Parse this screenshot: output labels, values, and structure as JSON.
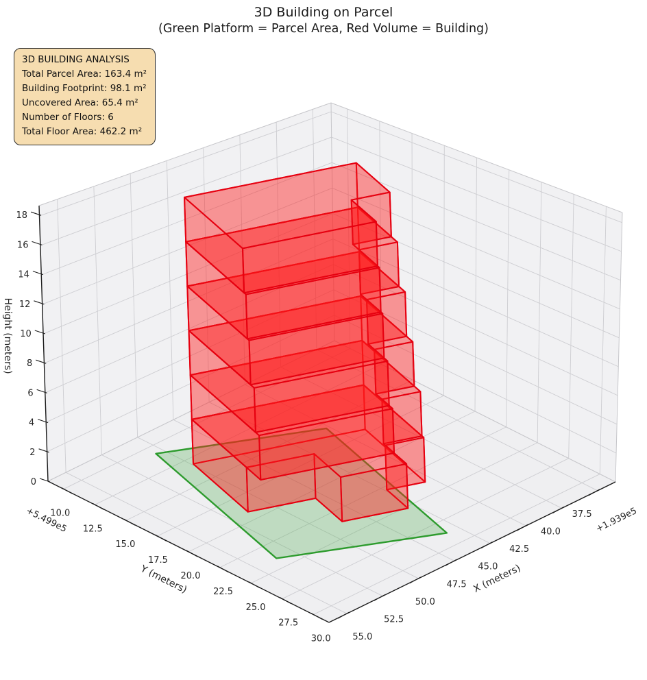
{
  "title": {
    "line1": "3D Building on Parcel",
    "line2": "(Green Platform = Parcel Area, Red Volume = Building)"
  },
  "info_box": {
    "title": "3D BUILDING ANALYSIS",
    "lines": [
      "Total Parcel Area: 163.4 m²",
      "Building Footprint: 98.1 m²",
      "Uncovered Area: 65.4 m²",
      "Number of Floors: 6",
      "Total Floor Area: 462.2 m²"
    ]
  },
  "axes": {
    "x": {
      "label": "X (meters)",
      "offset_text": "+1.939e5",
      "tick_labels": [
        "37.5",
        "40.0",
        "42.5",
        "45.0",
        "47.5",
        "50.0",
        "52.5",
        "55.0"
      ],
      "tick_values": [
        37.5,
        40,
        42.5,
        45,
        47.5,
        50,
        52.5,
        55
      ],
      "lim": [
        36.25,
        56.25
      ]
    },
    "y": {
      "label": "Y (meters)",
      "offset_text": "+5.499e5",
      "tick_labels": [
        "10.0",
        "12.5",
        "15.0",
        "17.5",
        "20.0",
        "22.5",
        "25.0",
        "27.5",
        "30.0"
      ],
      "tick_values": [
        10,
        12.5,
        15,
        17.5,
        20,
        22.5,
        25,
        27.5,
        30
      ],
      "lim": [
        8.75,
        31.25
      ]
    },
    "z": {
      "label": "Height (meters)",
      "tick_labels": [
        "0",
        "2",
        "4",
        "6",
        "8",
        "10",
        "12",
        "14",
        "16",
        "18"
      ],
      "tick_values": [
        0,
        2,
        4,
        6,
        8,
        10,
        12,
        14,
        16,
        18
      ],
      "lim": [
        0,
        18.7
      ]
    }
  },
  "colors": {
    "pane": "#f1f1f3",
    "floor_pane": "#efeff1",
    "grid": "#cdcdd1",
    "pane_edge": "#c6c6ca",
    "spine": "#1c1c1c",
    "tick_text": "#262626",
    "building_edge": "#e60010",
    "building_fill": "#ff1a1a",
    "parcel_edge": "#2d9b2d",
    "parcel_fill": "#44aa44",
    "info_bg": "#f6ddb0"
  },
  "chart_data": {
    "type": "3d_building_plot",
    "title": "3D Building on Parcel",
    "subtitle": "(Green Platform = Parcel Area, Red Volume = Building)",
    "coordinate_offsets": {
      "x": "+1.939e5",
      "y": "+5.499e5"
    },
    "stats": {
      "total_parcel_area_m2": 163.4,
      "building_footprint_m2": 98.1,
      "uncovered_area_m2": 65.4,
      "number_of_floors": 6,
      "total_floor_area_m2": 462.2
    },
    "floor_height_m": 3,
    "parcel_polygon_xy": [
      [
        50.5,
        10.8
      ],
      [
        53.6,
        24.0
      ],
      [
        45.8,
        28.7
      ],
      [
        42.7,
        15.5
      ]
    ],
    "building_frame": {
      "origin": [
        49.9,
        13.1
      ],
      "e_length": [
        0.232,
        0.973
      ],
      "e_width": [
        -0.904,
        0.427
      ]
    },
    "building_floors": [
      {
        "z0": 0,
        "z1": 3,
        "poly": [
          [
            0,
            0
          ],
          [
            6.2,
            0
          ],
          [
            6.2,
            3.7
          ],
          [
            9.2,
            3.7
          ],
          [
            9.2,
            7.3
          ],
          [
            6.8,
            7.3
          ],
          [
            6.8,
            9.4
          ],
          [
            0,
            9.4
          ]
        ]
      },
      {
        "z0": 3,
        "z1": 6,
        "poly": [
          [
            0,
            0
          ],
          [
            7.8,
            0
          ],
          [
            7.8,
            7.3
          ],
          [
            6.6,
            7.3
          ],
          [
            6.6,
            9.4
          ],
          [
            0,
            9.4
          ]
        ]
      },
      {
        "z0": 6,
        "z1": 9,
        "poly": [
          [
            0,
            0
          ],
          [
            7.4,
            0
          ],
          [
            7.4,
            7.3
          ],
          [
            5.9,
            7.3
          ],
          [
            5.9,
            9.4
          ],
          [
            0,
            9.4
          ]
        ]
      },
      {
        "z0": 9,
        "z1": 12,
        "poly": [
          [
            0,
            0
          ],
          [
            7.0,
            0
          ],
          [
            7.0,
            7.3
          ],
          [
            5.2,
            7.3
          ],
          [
            5.2,
            9.4
          ],
          [
            0,
            9.4
          ]
        ]
      },
      {
        "z0": 12,
        "z1": 15,
        "poly": [
          [
            0,
            0
          ],
          [
            6.8,
            0
          ],
          [
            6.8,
            7.3
          ],
          [
            4.5,
            7.3
          ],
          [
            4.5,
            9.4
          ],
          [
            0,
            9.4
          ]
        ]
      },
      {
        "z0": 15,
        "z1": 18,
        "poly": [
          [
            0,
            0
          ],
          [
            6.6,
            0
          ],
          [
            6.6,
            7.3
          ],
          [
            3.8,
            7.3
          ],
          [
            3.8,
            9.4
          ],
          [
            0,
            9.4
          ]
        ]
      }
    ],
    "zlim": [
      0,
      18.7
    ],
    "grid": true,
    "view": {
      "elev_deg": 30,
      "azim_deg": 45,
      "projection": "persp"
    }
  }
}
